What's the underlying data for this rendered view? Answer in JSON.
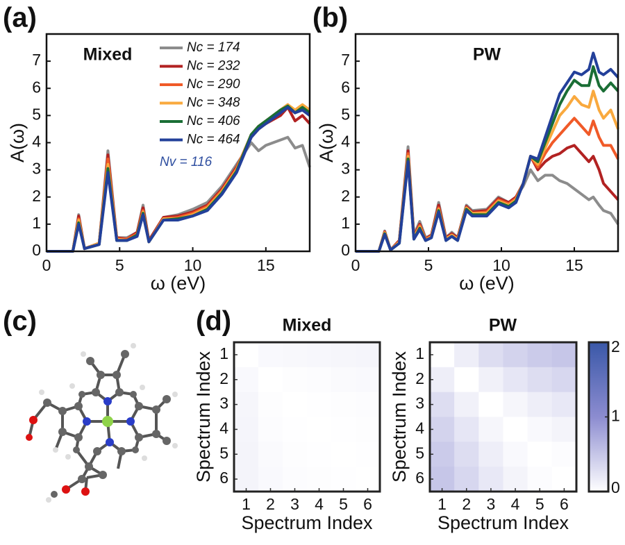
{
  "figure": {
    "panel_labels": [
      "(a)",
      "(b)",
      "(c)",
      "(d)"
    ]
  },
  "chart_data": [
    {
      "type": "line",
      "title": "Mixed",
      "xlabel": "ω (eV)",
      "ylabel": "A(ω)",
      "xlim": [
        0,
        18
      ],
      "ylim": [
        0,
        8
      ],
      "xticks": [
        0,
        5,
        10,
        15
      ],
      "yticks": [
        0,
        1,
        2,
        3,
        4,
        5,
        6,
        7
      ],
      "annotation": "Nv = 116",
      "annotation_color": "#2f4fa0",
      "x": [
        0,
        1.8,
        2.2,
        2.6,
        3.6,
        4.2,
        4.8,
        5.5,
        6.2,
        6.6,
        7.0,
        8,
        9,
        10,
        11,
        12,
        13,
        14,
        14.5,
        15,
        16,
        16.5,
        17,
        17.5,
        18
      ],
      "series": [
        {
          "name": "Nc = 174",
          "color": "#8c8c8c",
          "values": [
            0,
            0,
            1.35,
            0.1,
            0.3,
            3.7,
            0.5,
            0.5,
            0.7,
            1.7,
            0.4,
            1.25,
            1.35,
            1.55,
            1.8,
            2.4,
            3.2,
            4.0,
            3.7,
            3.9,
            4.1,
            4.2,
            3.8,
            3.9,
            3.1
          ]
        },
        {
          "name": "Nc = 232",
          "color": "#b22222",
          "values": [
            0,
            0,
            1.3,
            0.1,
            0.3,
            3.55,
            0.5,
            0.45,
            0.7,
            1.6,
            0.4,
            1.25,
            1.3,
            1.45,
            1.7,
            2.3,
            3.1,
            4.2,
            4.5,
            4.7,
            5.0,
            5.3,
            4.8,
            5.0,
            4.7
          ]
        },
        {
          "name": "Nc = 290",
          "color": "#f05a28",
          "values": [
            0,
            0,
            1.2,
            0.1,
            0.3,
            3.4,
            0.45,
            0.45,
            0.65,
            1.5,
            0.35,
            1.2,
            1.25,
            1.4,
            1.65,
            2.25,
            3.05,
            4.3,
            4.6,
            4.8,
            5.2,
            5.4,
            5.1,
            5.3,
            5.1
          ]
        },
        {
          "name": "Nc = 348",
          "color": "#f9a93e",
          "values": [
            0,
            0,
            1.15,
            0.1,
            0.3,
            3.2,
            0.45,
            0.4,
            0.6,
            1.45,
            0.35,
            1.2,
            1.2,
            1.35,
            1.6,
            2.2,
            3.0,
            4.3,
            4.6,
            4.8,
            5.2,
            5.4,
            5.2,
            5.4,
            5.2
          ]
        },
        {
          "name": "Nc = 406",
          "color": "#1a6e35",
          "values": [
            0,
            0,
            1.05,
            0.1,
            0.25,
            3.05,
            0.4,
            0.4,
            0.6,
            1.4,
            0.35,
            1.15,
            1.2,
            1.3,
            1.55,
            2.15,
            2.95,
            4.3,
            4.6,
            4.8,
            5.2,
            5.35,
            5.1,
            5.3,
            5.1
          ]
        },
        {
          "name": "Nc = 464",
          "color": "#23409a",
          "values": [
            0,
            0,
            1.0,
            0.1,
            0.25,
            2.9,
            0.4,
            0.4,
            0.55,
            1.35,
            0.35,
            1.15,
            1.15,
            1.3,
            1.5,
            2.1,
            2.9,
            4.2,
            4.5,
            4.7,
            5.1,
            5.3,
            5.1,
            5.2,
            5.0
          ]
        }
      ]
    },
    {
      "type": "line",
      "title": "PW",
      "xlabel": "ω (eV)",
      "ylabel": "A(ω)",
      "xlim": [
        0,
        18
      ],
      "ylim": [
        0,
        8
      ],
      "xticks": [
        0,
        5,
        10,
        15
      ],
      "yticks": [
        0,
        1,
        2,
        3,
        4,
        5,
        6,
        7
      ],
      "x": [
        0,
        1.6,
        2.0,
        2.4,
        3.0,
        3.6,
        4.0,
        4.4,
        4.8,
        5.2,
        5.7,
        6.2,
        6.6,
        7.0,
        7.6,
        8,
        9,
        9.8,
        10.5,
        11,
        11.5,
        12,
        12.5,
        13,
        13.5,
        14,
        14.5,
        15,
        15.5,
        16,
        16.3,
        16.7,
        17,
        17.5,
        18
      ],
      "series": [
        {
          "color": "#8c8c8c",
          "values": [
            0,
            0,
            0.75,
            0.05,
            0.4,
            3.85,
            0.6,
            1.1,
            0.5,
            0.6,
            1.8,
            0.5,
            0.7,
            0.5,
            1.7,
            1.5,
            1.55,
            2.0,
            1.8,
            2.0,
            2.4,
            3.0,
            2.6,
            2.8,
            2.8,
            2.6,
            2.5,
            2.3,
            2.1,
            1.9,
            2.0,
            1.7,
            1.5,
            1.4,
            1.0
          ]
        },
        {
          "color": "#b22222",
          "values": [
            0,
            0,
            0.72,
            0.05,
            0.4,
            3.7,
            0.55,
            1.0,
            0.45,
            0.6,
            1.7,
            0.5,
            0.65,
            0.5,
            1.65,
            1.45,
            1.5,
            1.95,
            1.8,
            2.0,
            2.5,
            3.5,
            3.0,
            3.3,
            3.5,
            3.6,
            3.8,
            3.9,
            3.6,
            3.3,
            3.5,
            3.0,
            2.5,
            2.2,
            1.9
          ]
        },
        {
          "color": "#f05a28",
          "values": [
            0,
            0,
            0.7,
            0.05,
            0.35,
            3.6,
            0.5,
            0.95,
            0.45,
            0.55,
            1.6,
            0.45,
            0.6,
            0.45,
            1.6,
            1.4,
            1.45,
            1.9,
            1.75,
            1.95,
            2.5,
            3.5,
            3.1,
            3.6,
            4.0,
            4.3,
            4.6,
            4.9,
            4.6,
            4.3,
            4.8,
            4.2,
            3.9,
            3.9,
            3.4
          ]
        },
        {
          "color": "#f9a93e",
          "values": [
            0,
            0,
            0.68,
            0.05,
            0.35,
            3.5,
            0.5,
            0.9,
            0.4,
            0.55,
            1.55,
            0.45,
            0.6,
            0.45,
            1.6,
            1.4,
            1.4,
            1.85,
            1.7,
            1.9,
            2.5,
            3.5,
            3.2,
            3.8,
            4.4,
            5.0,
            5.3,
            5.7,
            5.4,
            5.3,
            5.9,
            5.2,
            4.9,
            5.2,
            4.5
          ]
        },
        {
          "color": "#1a6e35",
          "values": [
            0,
            0,
            0.65,
            0.05,
            0.3,
            3.4,
            0.45,
            0.85,
            0.4,
            0.5,
            1.5,
            0.4,
            0.55,
            0.4,
            1.55,
            1.35,
            1.35,
            1.8,
            1.65,
            1.85,
            2.5,
            3.5,
            3.3,
            4.0,
            4.7,
            5.4,
            5.9,
            6.3,
            6.1,
            6.1,
            6.8,
            6.1,
            5.9,
            6.2,
            5.9
          ]
        },
        {
          "color": "#23409a",
          "values": [
            0,
            0,
            0.62,
            0.05,
            0.3,
            3.3,
            0.45,
            0.8,
            0.4,
            0.5,
            1.45,
            0.4,
            0.55,
            0.4,
            1.5,
            1.3,
            1.3,
            1.75,
            1.6,
            1.8,
            2.5,
            3.5,
            3.4,
            4.2,
            5.0,
            5.8,
            6.2,
            6.6,
            6.5,
            6.7,
            7.3,
            6.6,
            6.5,
            6.7,
            6.4
          ]
        }
      ]
    },
    {
      "type": "heatmap",
      "title": "Mixed",
      "xlabel": "Spectrum Index",
      "ylabel": "Spectrum Index",
      "xlim": [
        0.5,
        6.5
      ],
      "ylim": [
        0.5,
        6.5
      ],
      "xticks": [
        1,
        2,
        3,
        4,
        5,
        6
      ],
      "yticks": [
        1,
        2,
        3,
        4,
        5,
        6
      ],
      "zlim": [
        0,
        2
      ],
      "colormap": [
        "#ffffff",
        "#8c8cd0",
        "#3a58a8"
      ],
      "z": [
        [
          0,
          0.05,
          0.06,
          0.07,
          0.08,
          0.09
        ],
        [
          0.05,
          0,
          0.02,
          0.03,
          0.04,
          0.05
        ],
        [
          0.08,
          0.02,
          0,
          0.01,
          0.02,
          0.03
        ],
        [
          0.09,
          0.03,
          0.01,
          0,
          0.01,
          0.02
        ],
        [
          0.1,
          0.04,
          0.02,
          0.01,
          0,
          0.01
        ],
        [
          0.1,
          0.05,
          0.03,
          0.02,
          0.01,
          0
        ]
      ]
    },
    {
      "type": "heatmap",
      "title": "PW",
      "xlabel": "Spectrum Index",
      "ylabel": "Spectrum Index",
      "xlim": [
        0.5,
        6.5
      ],
      "ylim": [
        0.5,
        6.5
      ],
      "xticks": [
        1,
        2,
        3,
        4,
        5,
        6
      ],
      "yticks": [
        1,
        2,
        3,
        4,
        5,
        6
      ],
      "zlim": [
        0,
        2
      ],
      "zticks": [
        0,
        1,
        2
      ],
      "colormap": [
        "#ffffff",
        "#8c8cd0",
        "#3a58a8"
      ],
      "z": [
        [
          0,
          0.15,
          0.3,
          0.38,
          0.45,
          0.5
        ],
        [
          0.15,
          0,
          0.12,
          0.22,
          0.3,
          0.35
        ],
        [
          0.3,
          0.12,
          0,
          0.08,
          0.15,
          0.2
        ],
        [
          0.38,
          0.22,
          0.08,
          0,
          0.05,
          0.1
        ],
        [
          0.45,
          0.3,
          0.15,
          0.05,
          0,
          0.03
        ],
        [
          0.5,
          0.35,
          0.2,
          0.1,
          0.03,
          0
        ]
      ]
    }
  ]
}
